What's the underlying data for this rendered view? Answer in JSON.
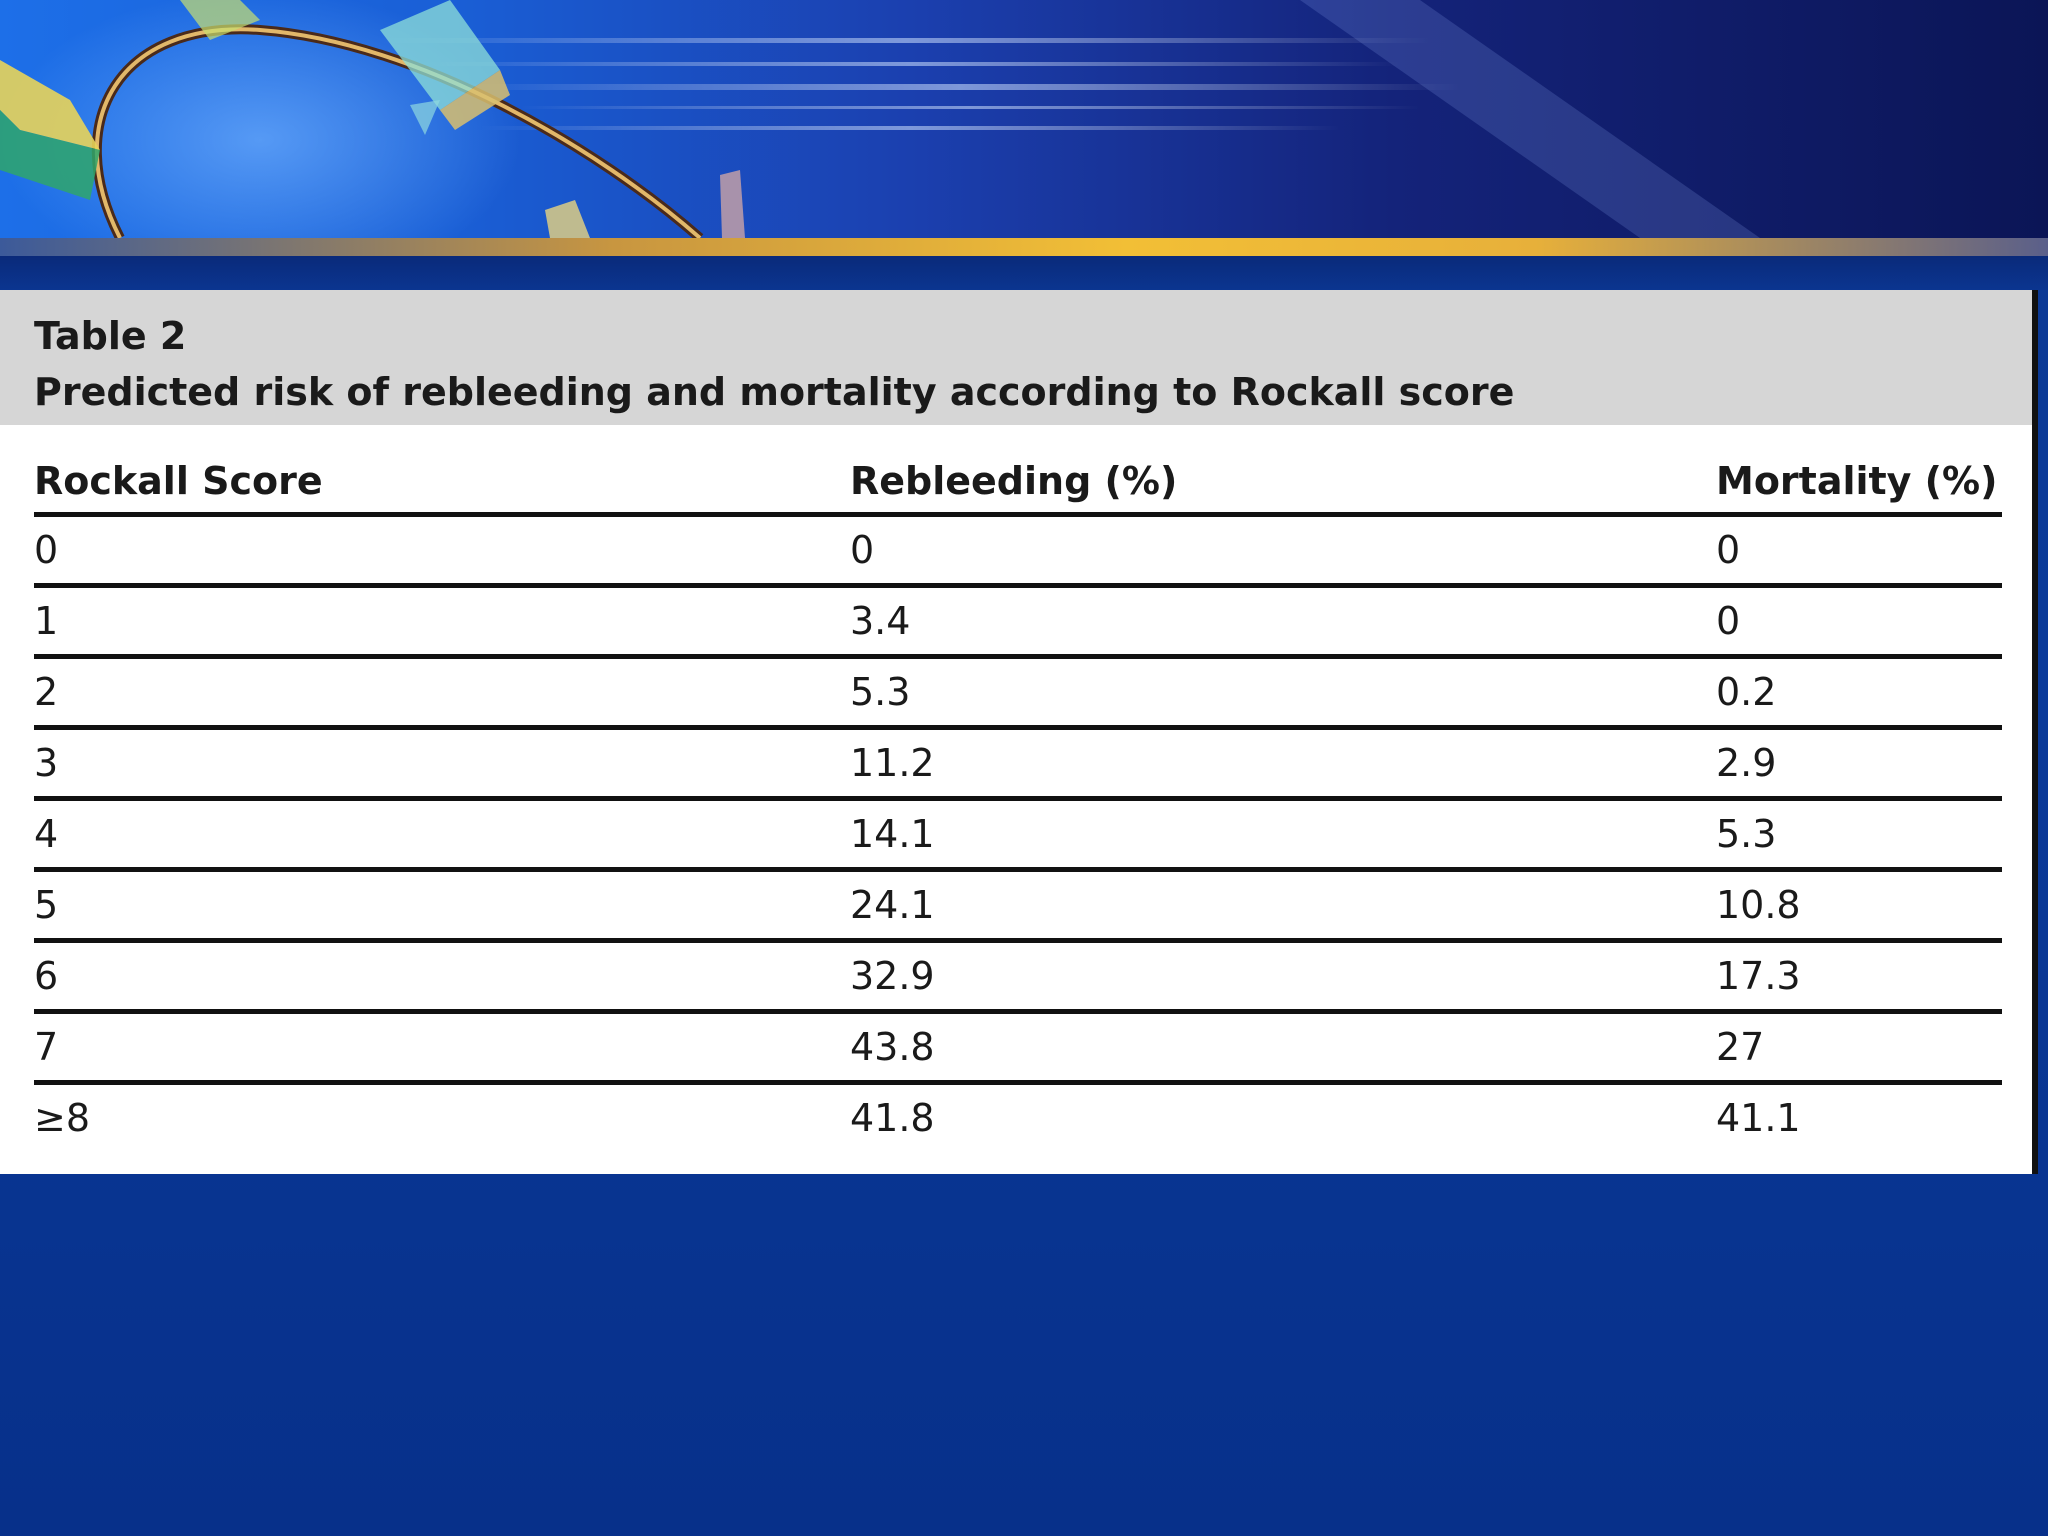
{
  "table": {
    "label": "Table 2",
    "caption": "Predicted risk of rebleeding and mortality according to Rockall score",
    "columns": [
      "Rockall Score",
      "Rebleeding (%)",
      "Mortality (%)"
    ],
    "rows": [
      [
        "0",
        "0",
        "0"
      ],
      [
        "1",
        "3.4",
        "0"
      ],
      [
        "2",
        "5.3",
        "0.2"
      ],
      [
        "3",
        "11.2",
        "2.9"
      ],
      [
        "4",
        "14.1",
        "5.3"
      ],
      [
        "5",
        "24.1",
        "10.8"
      ],
      [
        "6",
        "32.9",
        "17.3"
      ],
      [
        "7",
        "43.8",
        "27"
      ],
      [
        "≥8",
        "41.8",
        "41.1"
      ]
    ]
  },
  "colors": {
    "slide_background": "#0a3a9a",
    "caption_background": "#d6d6d6",
    "accent_gold": "#f2bf36"
  }
}
